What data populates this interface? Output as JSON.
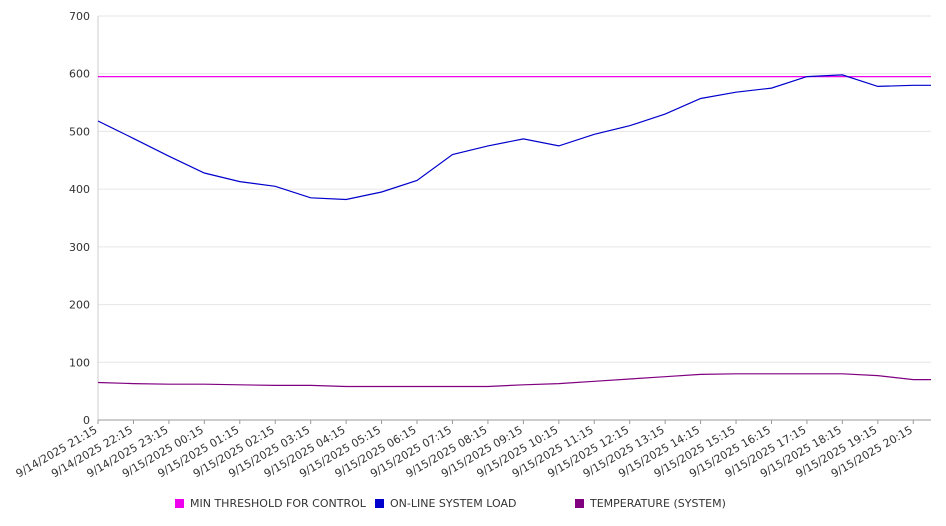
{
  "chart_data": {
    "type": "line",
    "title": "",
    "xlabel": "",
    "ylabel": "",
    "ylim": [
      0,
      700
    ],
    "y_ticks": [
      "0",
      "100",
      "200",
      "300",
      "400",
      "500",
      "600",
      "700"
    ],
    "grid": true,
    "legend_position": "bottom",
    "x": [
      "9/14/2025 21:15",
      "9/14/2025 22:15",
      "9/14/2025 23:15",
      "9/15/2025 00:15",
      "9/15/2025 01:15",
      "9/15/2025 02:15",
      "9/15/2025 03:15",
      "9/15/2025 04:15",
      "9/15/2025 05:15",
      "9/15/2025 06:15",
      "9/15/2025 07:15",
      "9/15/2025 08:15",
      "9/15/2025 09:15",
      "9/15/2025 10:15",
      "9/15/2025 11:15",
      "9/15/2025 12:15",
      "9/15/2025 13:15",
      "9/15/2025 14:15",
      "9/15/2025 15:15",
      "9/15/2025 16:15",
      "9/15/2025 17:15",
      "9/15/2025 18:15",
      "9/15/2025 19:15",
      "9/15/2025 20:15"
    ],
    "series": [
      {
        "name": "MIN THRESHOLD FOR CONTROL",
        "color": "#ee00ee",
        "values": [
          595,
          595,
          595,
          595,
          595,
          595,
          595,
          595,
          595,
          595,
          595,
          595,
          595,
          595,
          595,
          595,
          595,
          595,
          595,
          595,
          595,
          595,
          595,
          595
        ]
      },
      {
        "name": "ON-LINE SYSTEM LOAD",
        "color": "#0000cc",
        "values": [
          518,
          488,
          457,
          428,
          413,
          405,
          385,
          382,
          395,
          415,
          460,
          475,
          487,
          475,
          495,
          510,
          530,
          557,
          568,
          575,
          595,
          598,
          578,
          580
        ]
      },
      {
        "name": "TEMPERATURE (SYSTEM)",
        "color": "#800080",
        "values": [
          65,
          63,
          62,
          62,
          61,
          60,
          60,
          58,
          58,
          58,
          58,
          58,
          61,
          63,
          67,
          71,
          75,
          79,
          80,
          80,
          80,
          80,
          77,
          70
        ]
      }
    ]
  }
}
